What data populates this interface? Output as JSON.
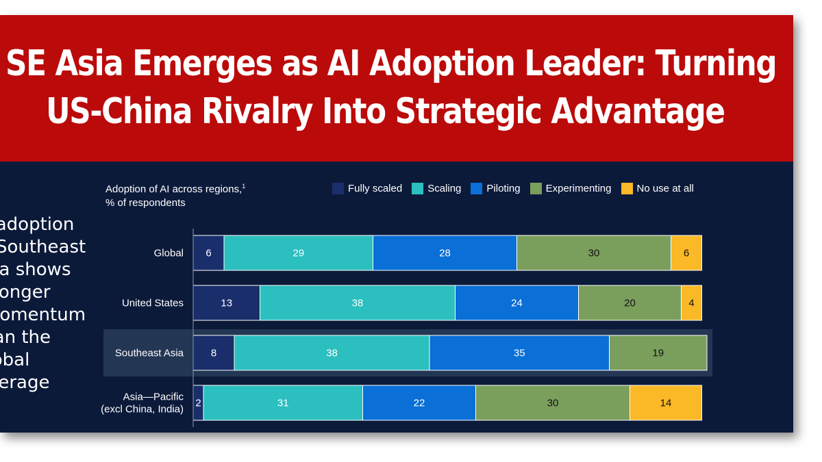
{
  "headline": {
    "line1": "SE Asia Emerges as AI Adoption Leader: Turning",
    "line2": "US-China Rivalry Into Strategic Advantage"
  },
  "callout": {
    "lines": [
      "AI adoption",
      "in Southeast",
      "Asia shows",
      "stronger",
      "momentum",
      "than the",
      "global",
      "average"
    ]
  },
  "chart_data": {
    "type": "bar",
    "orientation": "horizontal",
    "stacked": true,
    "title": "Adoption of AI across regions,",
    "title_footnote": "1",
    "subtitle": "% of respondents",
    "legend_position": "top",
    "highlighted_category": "Southeast Asia",
    "categories": [
      "Global",
      "United States",
      "Southeast Asia",
      "Asia—Pacific\n(excl China, India)"
    ],
    "series": [
      {
        "name": "Fully scaled",
        "color": "#1a2e6b",
        "label_color": "#ffffff",
        "values": [
          6,
          13,
          8,
          2
        ]
      },
      {
        "name": "Scaling",
        "color": "#2bbfbf",
        "label_color": "#ffffff",
        "values": [
          29,
          38,
          38,
          31
        ]
      },
      {
        "name": "Piloting",
        "color": "#0a6fd6",
        "label_color": "#ffffff",
        "values": [
          28,
          24,
          35,
          22
        ]
      },
      {
        "name": "Experimenting",
        "color": "#7a9e5c",
        "label_color": "#111111",
        "values": [
          30,
          20,
          19,
          30
        ]
      },
      {
        "name": "No use at all",
        "color": "#fbb827",
        "label_color": "#111111",
        "values": [
          6,
          4,
          0,
          14
        ]
      }
    ],
    "xlim": [
      0,
      100
    ]
  }
}
